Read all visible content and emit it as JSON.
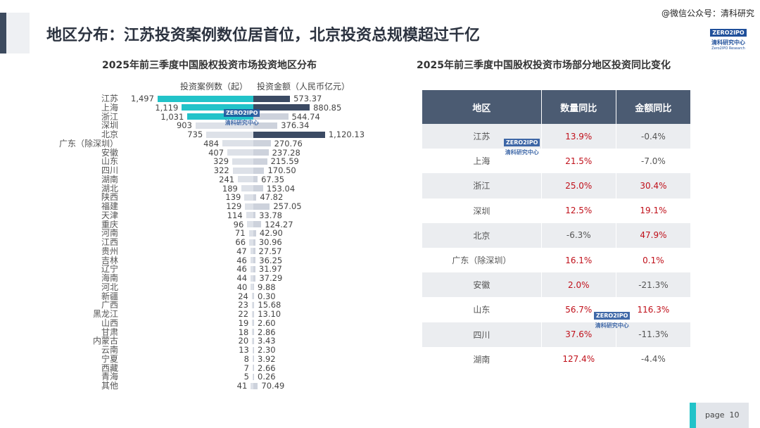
{
  "header": {
    "title": "地区分布：江苏投资案例数位居首位，北京投资总规模超过千亿",
    "watermark": "@微信公众号：清科研究",
    "logo": {
      "brand": "ZERO2IPO",
      "cn": "清科研究中心",
      "en": "Zero2IPO Research"
    }
  },
  "chart_data": {
    "type": "bar",
    "title": "2025年前三季度中国股权投资市场投资地区分布",
    "categories": [
      "江苏",
      "上海",
      "浙江",
      "深圳",
      "北京",
      "广东（除深圳）",
      "安徽",
      "山东",
      "四川",
      "湖南",
      "湖北",
      "陕西",
      "福建",
      "天津",
      "重庆",
      "河南",
      "江西",
      "贵州",
      "吉林",
      "辽宁",
      "海南",
      "河北",
      "新疆",
      "广西",
      "黑龙江",
      "山西",
      "甘肃",
      "内蒙古",
      "云南",
      "宁夏",
      "西藏",
      "青海",
      "其他"
    ],
    "series": [
      {
        "name": "投资案例数（起）",
        "direction": "left",
        "values": [
          1497,
          1119,
          1031,
          903,
          735,
          484,
          407,
          329,
          322,
          241,
          189,
          139,
          129,
          114,
          96,
          71,
          66,
          47,
          46,
          46,
          44,
          40,
          24,
          23,
          22,
          19,
          18,
          20,
          13,
          8,
          7,
          5,
          41
        ],
        "labels": [
          "1,497",
          "1,119",
          "1,031",
          "903",
          "735",
          "484",
          "407",
          "329",
          "322",
          "241",
          "189",
          "139",
          "129",
          "114",
          "96",
          "71",
          "66",
          "47",
          "46",
          "46",
          "44",
          "40",
          "24",
          "23",
          "22",
          "19",
          "18",
          "20",
          "13",
          "8",
          "7",
          "5",
          "41"
        ],
        "highlight": [
          "江苏",
          "上海",
          "浙江"
        ],
        "highlight_color": "#22c3c9"
      },
      {
        "name": "投资金额（人民币亿元）",
        "direction": "right",
        "values": [
          573.37,
          880.85,
          544.74,
          376.34,
          1120.13,
          270.76,
          237.28,
          215.59,
          170.5,
          67.35,
          153.04,
          47.82,
          257.05,
          33.78,
          124.27,
          42.9,
          30.96,
          27.57,
          36.25,
          31.97,
          37.29,
          9.88,
          0.3,
          15.68,
          13.1,
          2.6,
          2.86,
          3.43,
          2.3,
          3.92,
          2.66,
          0.26,
          70.49
        ],
        "labels": [
          "573.37",
          "880.85",
          "544.74",
          "376.34",
          "1,120.13",
          "270.76",
          "237.28",
          "215.59",
          "170.50",
          "67.35",
          "153.04",
          "47.82",
          "257.05",
          "33.78",
          "124.27",
          "42.90",
          "30.96",
          "27.57",
          "36.25",
          "31.97",
          "37.29",
          "9.88",
          "0.30",
          "15.68",
          "13.10",
          "2.60",
          "2.86",
          "3.43",
          "2.30",
          "3.92",
          "2.66",
          "0.26",
          "70.49"
        ],
        "highlight": [
          "江苏",
          "上海",
          "北京"
        ],
        "highlight_color": "#3b4a63"
      }
    ],
    "base_color": "#dde1e8"
  },
  "table": {
    "title": "2025年前三季度中国股权投资市场部分地区投资同比变化",
    "headers": [
      "地区",
      "数量同比",
      "金额同比"
    ],
    "rows": [
      [
        "江苏",
        "13.9%",
        "-0.4%"
      ],
      [
        "上海",
        "21.5%",
        "-7.0%"
      ],
      [
        "浙江",
        "25.0%",
        "30.4%"
      ],
      [
        "深圳",
        "12.5%",
        "19.1%"
      ],
      [
        "北京",
        "-6.3%",
        "47.9%"
      ],
      [
        "广东（除深圳）",
        "16.1%",
        "0.1%"
      ],
      [
        "安徽",
        "2.0%",
        "-21.3%"
      ],
      [
        "山东",
        "56.7%",
        "116.3%"
      ],
      [
        "四川",
        "37.6%",
        "-11.3%"
      ],
      [
        "湖南",
        "127.4%",
        "-4.4%"
      ]
    ],
    "positive_color": "#c0101a"
  },
  "footer": {
    "page_label": "page",
    "page_number": "10"
  }
}
